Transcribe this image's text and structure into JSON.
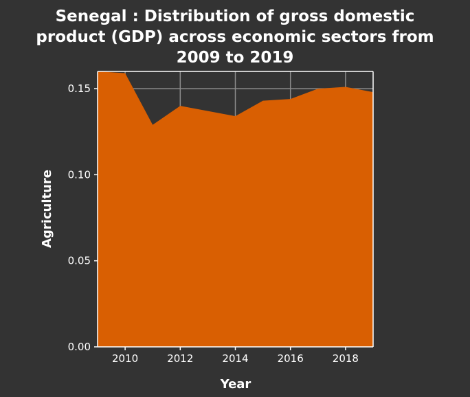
{
  "chart_data": {
    "type": "area",
    "title_lines": [
      "Senegal : Distribution of gross domestic",
      "product (GDP) across economic sectors from",
      "2009 to 2019"
    ],
    "xlabel": "Year",
    "ylabel": "Agriculture",
    "x": [
      2009,
      2010,
      2011,
      2012,
      2013,
      2014,
      2015,
      2016,
      2017,
      2018,
      2019
    ],
    "series": [
      {
        "values": [
          0.16,
          0.159,
          0.129,
          0.14,
          0.137,
          0.134,
          0.143,
          0.144,
          0.15,
          0.151,
          0.148
        ]
      }
    ],
    "xlim": [
      2009,
      2019
    ],
    "ylim": [
      0,
      0.16
    ],
    "x_ticks": [
      2010,
      2012,
      2014,
      2016,
      2018
    ],
    "x_tick_labels": [
      "2010",
      "2012",
      "2014",
      "2016",
      "2018"
    ],
    "y_ticks": [
      0,
      0.05,
      0.1,
      0.15
    ],
    "y_tick_labels": [
      "0.00",
      "0.05",
      "0.10",
      "0.15"
    ],
    "grid": true,
    "colors": {
      "background": "#333333",
      "fill": "#d95f02",
      "grid": "#8c8c8c",
      "text": "#ffffff"
    }
  }
}
